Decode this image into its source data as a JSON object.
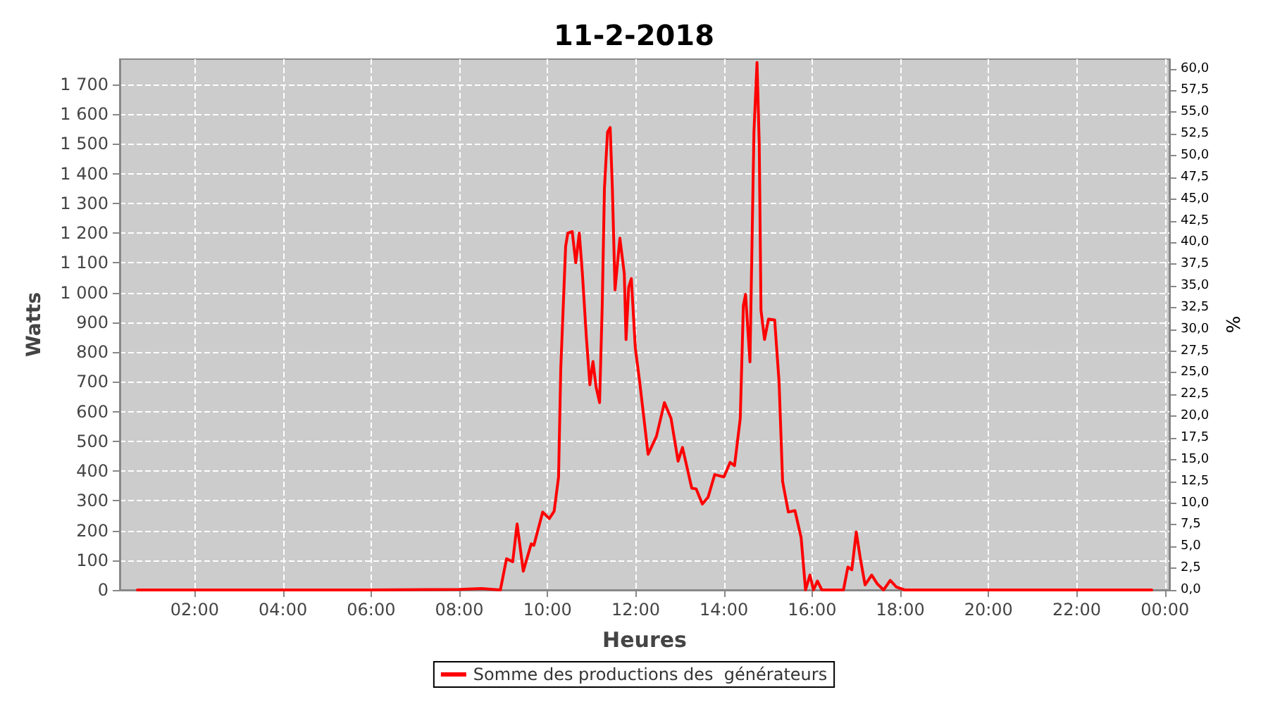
{
  "chart_data": {
    "type": "line",
    "title": "11-2-2018",
    "xlabel": "Heures",
    "ylabel": "Watts",
    "y2label": "%",
    "xlim": [
      0.3,
      24.1
    ],
    "xticks": [
      {
        "value": 2,
        "label": "02:00"
      },
      {
        "value": 4,
        "label": "04:00"
      },
      {
        "value": 6,
        "label": "06:00"
      },
      {
        "value": 8,
        "label": "08:00"
      },
      {
        "value": 10,
        "label": "10:00"
      },
      {
        "value": 12,
        "label": "12:00"
      },
      {
        "value": 14,
        "label": "14:00"
      },
      {
        "value": 16,
        "label": "16:00"
      },
      {
        "value": 18,
        "label": "18:00"
      },
      {
        "value": 20,
        "label": "20:00"
      },
      {
        "value": 22,
        "label": "22:00"
      },
      {
        "value": 24,
        "label": "00:00"
      }
    ],
    "ylim": [
      0,
      1785
    ],
    "yticks": [
      0,
      100,
      200,
      300,
      400,
      500,
      600,
      700,
      800,
      900,
      {
        "value": 1000,
        "label": "1 000"
      },
      {
        "value": 1100,
        "label": "1 100"
      },
      {
        "value": 1200,
        "label": "1 200"
      },
      {
        "value": 1300,
        "label": "1 300"
      },
      {
        "value": 1400,
        "label": "1 400"
      },
      {
        "value": 1500,
        "label": "1 500"
      },
      {
        "value": 1600,
        "label": "1 600"
      },
      {
        "value": 1700,
        "label": "1 700"
      }
    ],
    "y2lim": [
      0,
      61.1
    ],
    "y2ticks": [
      {
        "value": 0,
        "label": "0,0"
      },
      {
        "value": 2.5,
        "label": "2,5"
      },
      {
        "value": 5,
        "label": "5,0"
      },
      {
        "value": 7.5,
        "label": "7,5"
      },
      {
        "value": 10,
        "label": "10,0"
      },
      {
        "value": 12.5,
        "label": "12,5"
      },
      {
        "value": 15,
        "label": "15,0"
      },
      {
        "value": 17.5,
        "label": "17,5"
      },
      {
        "value": 20,
        "label": "20,0"
      },
      {
        "value": 22.5,
        "label": "22,5"
      },
      {
        "value": 25,
        "label": "25,0"
      },
      {
        "value": 27.5,
        "label": "27,5"
      },
      {
        "value": 30,
        "label": "30,0"
      },
      {
        "value": 32.5,
        "label": "32,5"
      },
      {
        "value": 35,
        "label": "35,0"
      },
      {
        "value": 37.5,
        "label": "37,5"
      },
      {
        "value": 40,
        "label": "40,0"
      },
      {
        "value": 42.5,
        "label": "42,5"
      },
      {
        "value": 45,
        "label": "45,0"
      },
      {
        "value": 47.5,
        "label": "47,5"
      },
      {
        "value": 50,
        "label": "50,0"
      },
      {
        "value": 52.5,
        "label": "52,5"
      },
      {
        "value": 55,
        "label": "55,0"
      },
      {
        "value": 57.5,
        "label": "57,5"
      },
      {
        "value": 60,
        "label": "60,0"
      }
    ],
    "grid": true,
    "legend": "bottom",
    "marker": "none",
    "line_style": "solid",
    "series": [
      {
        "name": "Somme des productions des  générateurs",
        "color": "#ff0000",
        "x": [
          0.7,
          3.0,
          6.0,
          8.0,
          8.5,
          8.93,
          9.07,
          9.21,
          9.31,
          9.45,
          9.63,
          9.69,
          9.89,
          10.04,
          10.15,
          10.25,
          10.3,
          10.41,
          10.46,
          10.56,
          10.64,
          10.72,
          10.79,
          10.88,
          10.96,
          11.03,
          11.1,
          11.18,
          11.24,
          11.29,
          11.36,
          11.42,
          11.47,
          11.53,
          11.64,
          11.74,
          11.78,
          11.84,
          11.9,
          11.99,
          12.09,
          12.28,
          12.47,
          12.65,
          12.8,
          12.96,
          13.06,
          13.27,
          13.37,
          13.51,
          13.64,
          13.79,
          14.0,
          14.14,
          14.24,
          14.37,
          14.44,
          14.49,
          14.59,
          14.68,
          14.75,
          14.8,
          14.84,
          14.92,
          15.01,
          15.15,
          15.25,
          15.33,
          15.46,
          15.61,
          15.75,
          15.85,
          15.95,
          16.03,
          16.12,
          16.22,
          16.71,
          16.81,
          16.9,
          17.0,
          17.09,
          17.2,
          17.35,
          17.48,
          17.62,
          17.77,
          17.91,
          18.1,
          20.0,
          22.0,
          23.7
        ],
        "values": [
          0,
          0,
          0,
          2,
          5,
          0,
          105,
          95,
          222,
          63,
          155,
          150,
          262,
          240,
          265,
          380,
          745,
          1155,
          1200,
          1205,
          1100,
          1200,
          1064,
          850,
          690,
          768,
          683,
          630,
          956,
          1350,
          1540,
          1555,
          1350,
          1009,
          1183,
          1064,
          842,
          1018,
          1047,
          814,
          699,
          456,
          517,
          630,
          577,
          433,
          479,
          342,
          340,
          289,
          312,
          388,
          380,
          429,
          418,
          577,
          956,
          994,
          767,
          1540,
          1774,
          1501,
          941,
          842,
          911,
          908,
          699,
          365,
          262,
          267,
          176,
          0,
          50,
          0,
          30,
          0,
          0,
          77,
          68,
          195,
          108,
          17,
          50,
          20,
          0,
          32,
          10,
          0,
          0,
          0,
          0
        ]
      }
    ]
  }
}
